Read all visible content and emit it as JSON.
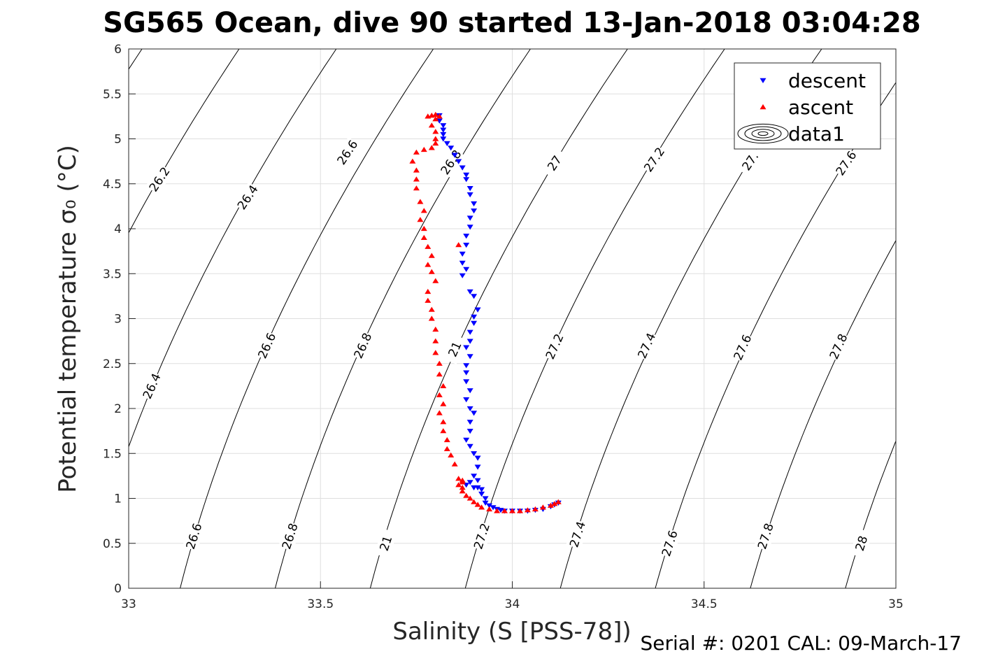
{
  "chart_data": {
    "type": "scatter",
    "title": "SG565 Ocean, dive 90 started 13-Jan-2018 03:04:28",
    "xlabel": "Salinity (S [PSS-78])",
    "ylabel": "Potential temperature σ₀ (°C)",
    "xlim": [
      33,
      35
    ],
    "ylim": [
      0,
      6
    ],
    "xticks": [
      "33",
      "33.5",
      "34",
      "34.5",
      "35"
    ],
    "yticks": [
      "0",
      "0.5",
      "1",
      "1.5",
      "2",
      "2.5",
      "3",
      "3.5",
      "4",
      "4.5",
      "5",
      "5.5",
      "6"
    ],
    "grid": true,
    "legend_position": "top-right",
    "footer": "Serial #: 0201  CAL: 09-March-17",
    "colors": {
      "descent": "#0000ff",
      "ascent": "#ff0000",
      "contour": "#000000",
      "grid": "#dfdfdf"
    },
    "contour_labels": [
      {
        "text": "26.2",
        "s": 33.08,
        "t": 4.55,
        "rot": -56
      },
      {
        "text": "26.4",
        "s": 33.31,
        "t": 4.35,
        "rot": -56
      },
      {
        "text": "26.6",
        "s": 33.57,
        "t": 4.85,
        "rot": -56
      },
      {
        "text": "26.8",
        "s": 33.84,
        "t": 4.74,
        "rot": -56
      },
      {
        "text": "27",
        "s": 34.11,
        "t": 4.73,
        "rot": -56
      },
      {
        "text": "27.2",
        "s": 34.37,
        "t": 4.77,
        "rot": -56
      },
      {
        "text": "27.",
        "s": 34.62,
        "t": 4.75,
        "rot": -56
      },
      {
        "text": "27.6",
        "s": 34.87,
        "t": 4.73,
        "rot": -56
      },
      {
        "text": "26.4",
        "s": 33.06,
        "t": 2.25,
        "rot": -66
      },
      {
        "text": "26.6",
        "s": 33.36,
        "t": 2.7,
        "rot": -66
      },
      {
        "text": "26.8",
        "s": 33.61,
        "t": 2.7,
        "rot": -66
      },
      {
        "text": "21",
        "s": 33.85,
        "t": 2.66,
        "rot": -66
      },
      {
        "text": "27.2",
        "s": 34.11,
        "t": 2.69,
        "rot": -66
      },
      {
        "text": "27.4",
        "s": 34.35,
        "t": 2.7,
        "rot": -66
      },
      {
        "text": "27.6",
        "s": 34.6,
        "t": 2.68,
        "rot": -66
      },
      {
        "text": "27.8",
        "s": 34.85,
        "t": 2.69,
        "rot": -66
      },
      {
        "text": "26.6",
        "s": 33.17,
        "t": 0.58,
        "rot": -72
      },
      {
        "text": "26.8",
        "s": 33.42,
        "t": 0.58,
        "rot": -72
      },
      {
        "text": "21",
        "s": 33.67,
        "t": 0.5,
        "rot": -72
      },
      {
        "text": "27.2",
        "s": 33.92,
        "t": 0.58,
        "rot": -72
      },
      {
        "text": "27.4",
        "s": 34.17,
        "t": 0.6,
        "rot": -72
      },
      {
        "text": "27.6",
        "s": 34.41,
        "t": 0.5,
        "rot": -72
      },
      {
        "text": "27.8",
        "s": 34.66,
        "t": 0.58,
        "rot": -72
      },
      {
        "text": "28",
        "s": 34.91,
        "t": 0.5,
        "rot": -72
      }
    ],
    "series": [
      {
        "name": "descent",
        "marker": "triangle-down",
        "points": [
          [
            33.81,
            5.26
          ],
          [
            33.81,
            5.2
          ],
          [
            33.82,
            5.15
          ],
          [
            33.82,
            5.1
          ],
          [
            33.82,
            5.05
          ],
          [
            33.82,
            5.0
          ],
          [
            33.83,
            4.95
          ],
          [
            33.84,
            4.9
          ],
          [
            33.85,
            4.82
          ],
          [
            33.86,
            4.75
          ],
          [
            33.87,
            4.68
          ],
          [
            33.88,
            4.6
          ],
          [
            33.88,
            4.55
          ],
          [
            33.89,
            4.45
          ],
          [
            33.89,
            4.38
          ],
          [
            33.9,
            4.28
          ],
          [
            33.9,
            4.2
          ],
          [
            33.89,
            4.12
          ],
          [
            33.89,
            4.02
          ],
          [
            33.88,
            3.92
          ],
          [
            33.88,
            3.82
          ],
          [
            33.87,
            3.72
          ],
          [
            33.87,
            3.62
          ],
          [
            33.88,
            3.55
          ],
          [
            33.87,
            3.48
          ],
          [
            33.89,
            3.3
          ],
          [
            33.9,
            3.25
          ],
          [
            33.91,
            3.1
          ],
          [
            33.9,
            3.02
          ],
          [
            33.9,
            2.95
          ],
          [
            33.89,
            2.85
          ],
          [
            33.89,
            2.75
          ],
          [
            33.88,
            2.68
          ],
          [
            33.89,
            2.58
          ],
          [
            33.88,
            2.48
          ],
          [
            33.88,
            2.4
          ],
          [
            33.88,
            2.3
          ],
          [
            33.89,
            2.2
          ],
          [
            33.88,
            2.1
          ],
          [
            33.89,
            2.0
          ],
          [
            33.9,
            1.95
          ],
          [
            33.89,
            1.85
          ],
          [
            33.89,
            1.75
          ],
          [
            33.88,
            1.65
          ],
          [
            33.89,
            1.58
          ],
          [
            33.9,
            1.5
          ],
          [
            33.91,
            1.45
          ],
          [
            33.91,
            1.35
          ],
          [
            33.9,
            1.25
          ],
          [
            33.91,
            1.2
          ],
          [
            33.89,
            1.18
          ],
          [
            33.88,
            1.15
          ],
          [
            33.9,
            1.12
          ],
          [
            33.91,
            1.12
          ],
          [
            33.92,
            1.1
          ],
          [
            33.92,
            1.05
          ],
          [
            33.93,
            1.0
          ],
          [
            33.93,
            0.95
          ],
          [
            33.94,
            0.92
          ],
          [
            33.95,
            0.9
          ],
          [
            33.96,
            0.88
          ],
          [
            33.97,
            0.87
          ],
          [
            33.98,
            0.86
          ],
          [
            34.0,
            0.86
          ],
          [
            34.02,
            0.86
          ],
          [
            34.04,
            0.86
          ],
          [
            34.06,
            0.87
          ],
          [
            34.08,
            0.88
          ],
          [
            34.1,
            0.91
          ],
          [
            34.11,
            0.93
          ],
          [
            34.12,
            0.95
          ]
        ]
      },
      {
        "name": "ascent",
        "marker": "triangle-up",
        "points": [
          [
            34.12,
            0.96
          ],
          [
            34.11,
            0.94
          ],
          [
            34.1,
            0.92
          ],
          [
            34.08,
            0.9
          ],
          [
            34.06,
            0.88
          ],
          [
            34.04,
            0.87
          ],
          [
            34.02,
            0.86
          ],
          [
            34.0,
            0.86
          ],
          [
            33.98,
            0.86
          ],
          [
            33.96,
            0.86
          ],
          [
            33.94,
            0.88
          ],
          [
            33.92,
            0.9
          ],
          [
            33.91,
            0.93
          ],
          [
            33.9,
            0.96
          ],
          [
            33.89,
            1.0
          ],
          [
            33.88,
            1.03
          ],
          [
            33.87,
            1.08
          ],
          [
            33.87,
            1.12
          ],
          [
            33.86,
            1.15
          ],
          [
            33.87,
            1.18
          ],
          [
            33.86,
            1.22
          ],
          [
            33.87,
            1.2
          ],
          [
            33.85,
            1.38
          ],
          [
            33.84,
            1.48
          ],
          [
            33.83,
            1.55
          ],
          [
            33.83,
            1.65
          ],
          [
            33.82,
            1.75
          ],
          [
            33.82,
            1.85
          ],
          [
            33.81,
            1.95
          ],
          [
            33.82,
            2.05
          ],
          [
            33.81,
            2.15
          ],
          [
            33.82,
            2.25
          ],
          [
            33.81,
            2.38
          ],
          [
            33.81,
            2.5
          ],
          [
            33.8,
            2.62
          ],
          [
            33.8,
            2.75
          ],
          [
            33.8,
            2.88
          ],
          [
            33.79,
            3.0
          ],
          [
            33.79,
            3.1
          ],
          [
            33.78,
            3.2
          ],
          [
            33.78,
            3.3
          ],
          [
            33.8,
            3.42
          ],
          [
            33.79,
            3.52
          ],
          [
            33.78,
            3.6
          ],
          [
            33.79,
            3.7
          ],
          [
            33.78,
            3.8
          ],
          [
            33.77,
            3.9
          ],
          [
            33.77,
            4.0
          ],
          [
            33.76,
            4.1
          ],
          [
            33.77,
            4.2
          ],
          [
            33.76,
            4.3
          ],
          [
            33.75,
            4.45
          ],
          [
            33.75,
            4.55
          ],
          [
            33.75,
            4.65
          ],
          [
            33.74,
            4.75
          ],
          [
            33.75,
            4.85
          ],
          [
            33.77,
            4.88
          ],
          [
            33.79,
            4.9
          ],
          [
            33.8,
            4.95
          ],
          [
            33.8,
            5.0
          ],
          [
            33.8,
            5.08
          ],
          [
            33.79,
            5.15
          ],
          [
            33.8,
            5.22
          ],
          [
            33.81,
            5.25
          ],
          [
            33.8,
            5.27
          ],
          [
            33.79,
            5.26
          ],
          [
            33.78,
            5.25
          ],
          [
            33.86,
            3.82
          ]
        ]
      }
    ],
    "legend": [
      {
        "label": "descent",
        "symbol": "triangle-down"
      },
      {
        "label": "ascent",
        "symbol": "triangle-up"
      },
      {
        "label": "data1",
        "symbol": "contour"
      }
    ]
  }
}
